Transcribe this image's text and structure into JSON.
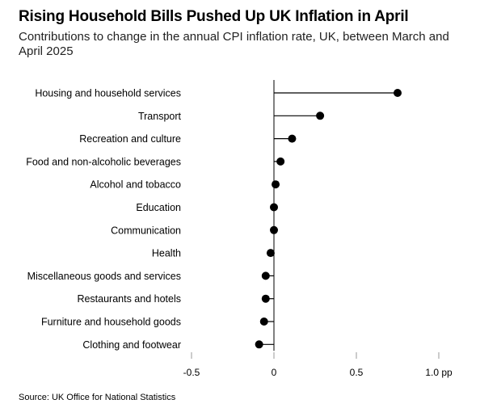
{
  "title": "Rising Household Bills Pushed Up UK Inflation in April",
  "subtitle": "Contributions to change in the annual CPI inflation rate, UK, between March and April 2025",
  "source": "Source: UK Office for National Statistics",
  "chart_data": {
    "type": "lollipop",
    "title": "Rising Household Bills Pushed Up UK Inflation in April",
    "subtitle": "Contributions to change in the annual CPI inflation rate, UK, between March and April 2025",
    "categories": [
      "Housing and household services",
      "Transport",
      "Recreation and culture",
      "Food and non-alcoholic beverages",
      "Alcohol and tobacco",
      "Education",
      "Communication",
      "Health",
      "Miscellaneous goods and services",
      "Restaurants and hotels",
      "Furniture and household goods",
      "Clothing and footwear"
    ],
    "values": [
      0.75,
      0.28,
      0.11,
      0.04,
      0.01,
      0.0,
      0.0,
      -0.02,
      -0.05,
      -0.05,
      -0.06,
      -0.09
    ],
    "xlim": [
      -0.5,
      1.0
    ],
    "xticks": [
      -0.5,
      0,
      0.5,
      1.0
    ],
    "xtick_labels": [
      "-0.5",
      "0",
      "0.5",
      "1.0 pp"
    ],
    "grid": false,
    "colors": {
      "marker": "#000000",
      "stem": "#000000",
      "tick": "#999999"
    }
  }
}
